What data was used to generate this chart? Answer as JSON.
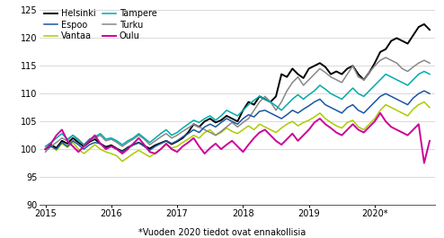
{
  "footnote": "*Vuoden 2020 tiedot ovat ennakollisia",
  "cities": [
    "Helsinki",
    "Vantaa",
    "Turku",
    "Espoo",
    "Tampere",
    "Oulu"
  ],
  "colors": [
    "#000000",
    "#aacc00",
    "#888888",
    "#1a56a0",
    "#00aaaa",
    "#cc0099"
  ],
  "linewidths": [
    1.4,
    1.1,
    1.1,
    1.1,
    1.1,
    1.4
  ],
  "ylim": [
    90,
    126
  ],
  "yticks": [
    90,
    95,
    100,
    105,
    110,
    115,
    120,
    125
  ],
  "xtick_positions": [
    0,
    12,
    24,
    36,
    48,
    60
  ],
  "xtick_labels": [
    "2015",
    "2016",
    "2017",
    "2018",
    "2019",
    "2020*"
  ],
  "helsinki": [
    100.0,
    100.8,
    100.2,
    101.5,
    101.0,
    102.0,
    101.2,
    100.5,
    101.3,
    101.8,
    101.0,
    100.4,
    100.7,
    100.1,
    99.6,
    100.3,
    100.8,
    101.2,
    100.6,
    100.1,
    100.7,
    101.1,
    101.5,
    100.9,
    101.4,
    102.0,
    103.0,
    104.5,
    104.0,
    105.0,
    105.5,
    104.8,
    105.2,
    106.0,
    105.5,
    105.0,
    107.0,
    108.5,
    108.0,
    109.5,
    109.0,
    108.5,
    109.5,
    113.5,
    113.0,
    114.5,
    113.5,
    112.8,
    114.5,
    115.0,
    115.5,
    114.8,
    113.5,
    114.0,
    113.5,
    114.5,
    115.0,
    113.5,
    112.5,
    113.8,
    115.5,
    117.5,
    118.0,
    119.5,
    120.0,
    119.5,
    119.0,
    120.5,
    122.0,
    122.5,
    121.5
  ],
  "vantaa": [
    100.0,
    100.5,
    99.8,
    101.0,
    100.3,
    101.2,
    100.0,
    99.2,
    100.0,
    100.8,
    100.0,
    99.5,
    99.2,
    98.8,
    97.8,
    98.5,
    99.2,
    99.8,
    99.2,
    98.6,
    99.3,
    100.0,
    100.8,
    100.2,
    100.5,
    101.2,
    101.8,
    102.5,
    102.0,
    103.0,
    103.5,
    102.5,
    103.0,
    103.8,
    103.2,
    102.8,
    103.5,
    104.2,
    103.5,
    104.5,
    104.0,
    103.5,
    103.0,
    103.8,
    104.5,
    105.0,
    104.2,
    104.8,
    105.2,
    105.8,
    106.5,
    105.5,
    104.8,
    104.2,
    103.8,
    104.8,
    105.2,
    104.0,
    103.5,
    104.5,
    105.5,
    107.0,
    108.0,
    107.5,
    107.0,
    106.5,
    106.0,
    107.2,
    108.0,
    108.5,
    107.5
  ],
  "turku": [
    99.5,
    100.5,
    101.2,
    102.0,
    101.5,
    102.5,
    101.8,
    100.8,
    101.5,
    102.0,
    102.5,
    101.5,
    101.8,
    101.2,
    100.5,
    101.2,
    101.8,
    102.5,
    101.8,
    100.8,
    101.5,
    102.2,
    102.8,
    102.0,
    102.5,
    103.2,
    103.8,
    104.5,
    104.0,
    103.5,
    103.0,
    102.5,
    103.2,
    104.0,
    104.8,
    104.0,
    104.8,
    105.5,
    107.0,
    108.5,
    109.5,
    108.5,
    107.0,
    108.5,
    110.5,
    112.0,
    113.0,
    111.5,
    112.5,
    113.5,
    114.5,
    113.8,
    113.0,
    112.5,
    112.0,
    113.5,
    115.0,
    113.0,
    112.5,
    113.8,
    115.0,
    116.0,
    116.5,
    116.0,
    115.5,
    114.5,
    114.0,
    114.8,
    115.5,
    116.0,
    115.5
  ],
  "espoo": [
    100.0,
    100.5,
    100.0,
    101.2,
    100.5,
    101.5,
    100.8,
    100.0,
    100.8,
    101.2,
    101.0,
    100.2,
    100.5,
    100.0,
    99.5,
    100.2,
    100.8,
    101.2,
    100.5,
    99.8,
    100.5,
    101.0,
    101.5,
    101.0,
    101.5,
    102.2,
    102.8,
    103.5,
    103.0,
    104.0,
    104.5,
    104.0,
    104.8,
    105.5,
    105.0,
    104.5,
    105.5,
    106.2,
    105.8,
    106.8,
    107.0,
    106.5,
    106.0,
    105.5,
    106.2,
    107.0,
    106.5,
    107.2,
    107.8,
    108.5,
    109.0,
    108.0,
    107.5,
    107.0,
    106.5,
    107.5,
    108.0,
    107.0,
    106.5,
    107.5,
    108.5,
    109.5,
    110.0,
    109.5,
    109.0,
    108.5,
    108.0,
    109.2,
    110.0,
    110.5,
    110.0
  ],
  "tampere": [
    100.5,
    101.2,
    102.0,
    102.8,
    101.8,
    102.5,
    101.5,
    100.8,
    101.8,
    102.2,
    102.8,
    101.8,
    102.0,
    101.5,
    100.8,
    101.5,
    102.0,
    102.8,
    102.0,
    101.2,
    102.0,
    102.8,
    103.5,
    102.5,
    103.0,
    103.8,
    104.5,
    105.2,
    104.8,
    105.5,
    106.0,
    105.2,
    106.0,
    107.0,
    106.5,
    106.0,
    107.0,
    108.0,
    108.8,
    109.5,
    109.0,
    108.5,
    107.8,
    107.0,
    108.0,
    109.0,
    109.8,
    109.0,
    109.8,
    110.5,
    111.5,
    110.8,
    110.0,
    109.5,
    109.0,
    110.0,
    111.0,
    110.0,
    109.5,
    110.5,
    111.5,
    112.5,
    113.5,
    113.0,
    112.5,
    112.0,
    111.5,
    112.5,
    113.5,
    114.0,
    113.5
  ],
  "oulu": [
    100.0,
    101.0,
    102.5,
    103.5,
    101.5,
    100.5,
    99.5,
    100.5,
    101.5,
    102.5,
    101.0,
    100.0,
    100.5,
    100.0,
    99.2,
    100.0,
    101.0,
    102.0,
    100.8,
    99.5,
    99.2,
    100.0,
    101.0,
    100.0,
    99.5,
    100.5,
    101.2,
    102.0,
    100.5,
    99.2,
    100.2,
    101.0,
    100.0,
    100.8,
    101.5,
    100.5,
    99.5,
    100.8,
    102.0,
    103.0,
    103.5,
    102.5,
    101.5,
    100.8,
    101.8,
    102.8,
    101.5,
    102.5,
    103.5,
    104.8,
    105.5,
    104.5,
    103.8,
    103.0,
    102.5,
    103.5,
    104.5,
    103.5,
    103.0,
    104.0,
    105.0,
    106.5,
    105.0,
    104.0,
    103.5,
    103.0,
    102.5,
    103.5,
    104.5,
    97.5,
    101.5
  ]
}
